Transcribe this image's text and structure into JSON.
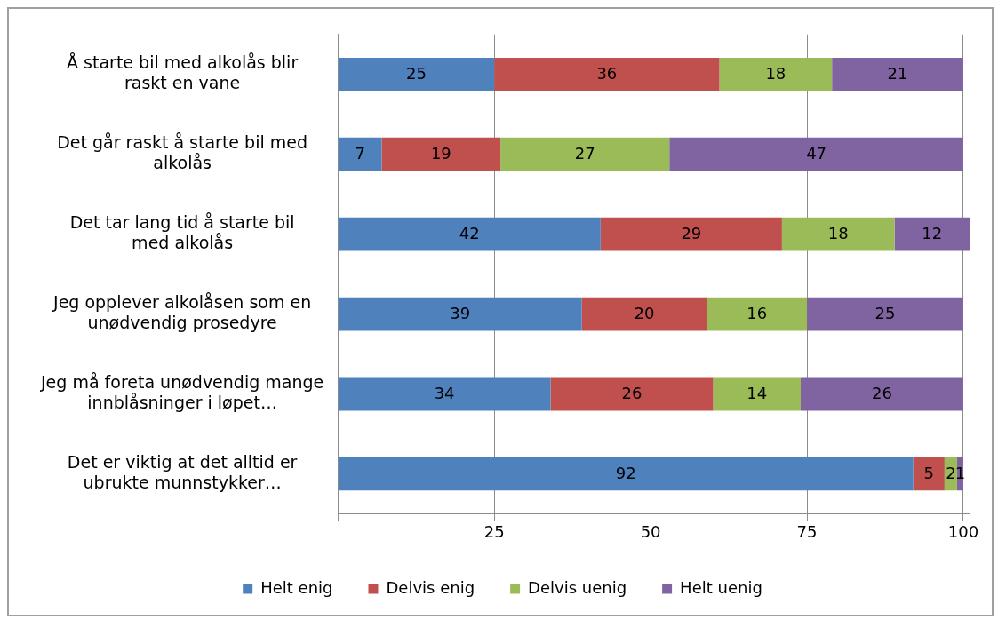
{
  "chart_data": {
    "type": "bar",
    "orientation": "horizontal",
    "stacked": true,
    "categories": [
      "Å starte bil med alkolås blir raskt en vane",
      "Det går raskt å starte bil med alkolås",
      "Det tar lang tid å starte bil med alkolås",
      "Jeg opplever alkolåsen som en unødvendig prosedyre",
      "Jeg må foreta unødvendig mange innblåsninger i løpet…",
      "Det er viktig at det alltid er ubrukte munnstykker…"
    ],
    "series": [
      {
        "name": "Helt enig",
        "color": "#4f81bd",
        "values": [
          25,
          7,
          42,
          39,
          34,
          92
        ]
      },
      {
        "name": "Delvis enig",
        "color": "#c0504d",
        "values": [
          36,
          19,
          29,
          20,
          26,
          5
        ]
      },
      {
        "name": "Delvis uenig",
        "color": "#9bbb59",
        "values": [
          18,
          27,
          18,
          16,
          14,
          2
        ]
      },
      {
        "name": "Helt uenig",
        "color": "#8064a2",
        "values": [
          21,
          47,
          12,
          25,
          26,
          1
        ]
      }
    ],
    "xlim": [
      0,
      101
    ],
    "xticks": [
      {
        "value": 0,
        "label": null
      },
      25,
      50,
      75,
      100
    ],
    "grid": "x",
    "legend": "bottom",
    "data_labels": true
  }
}
